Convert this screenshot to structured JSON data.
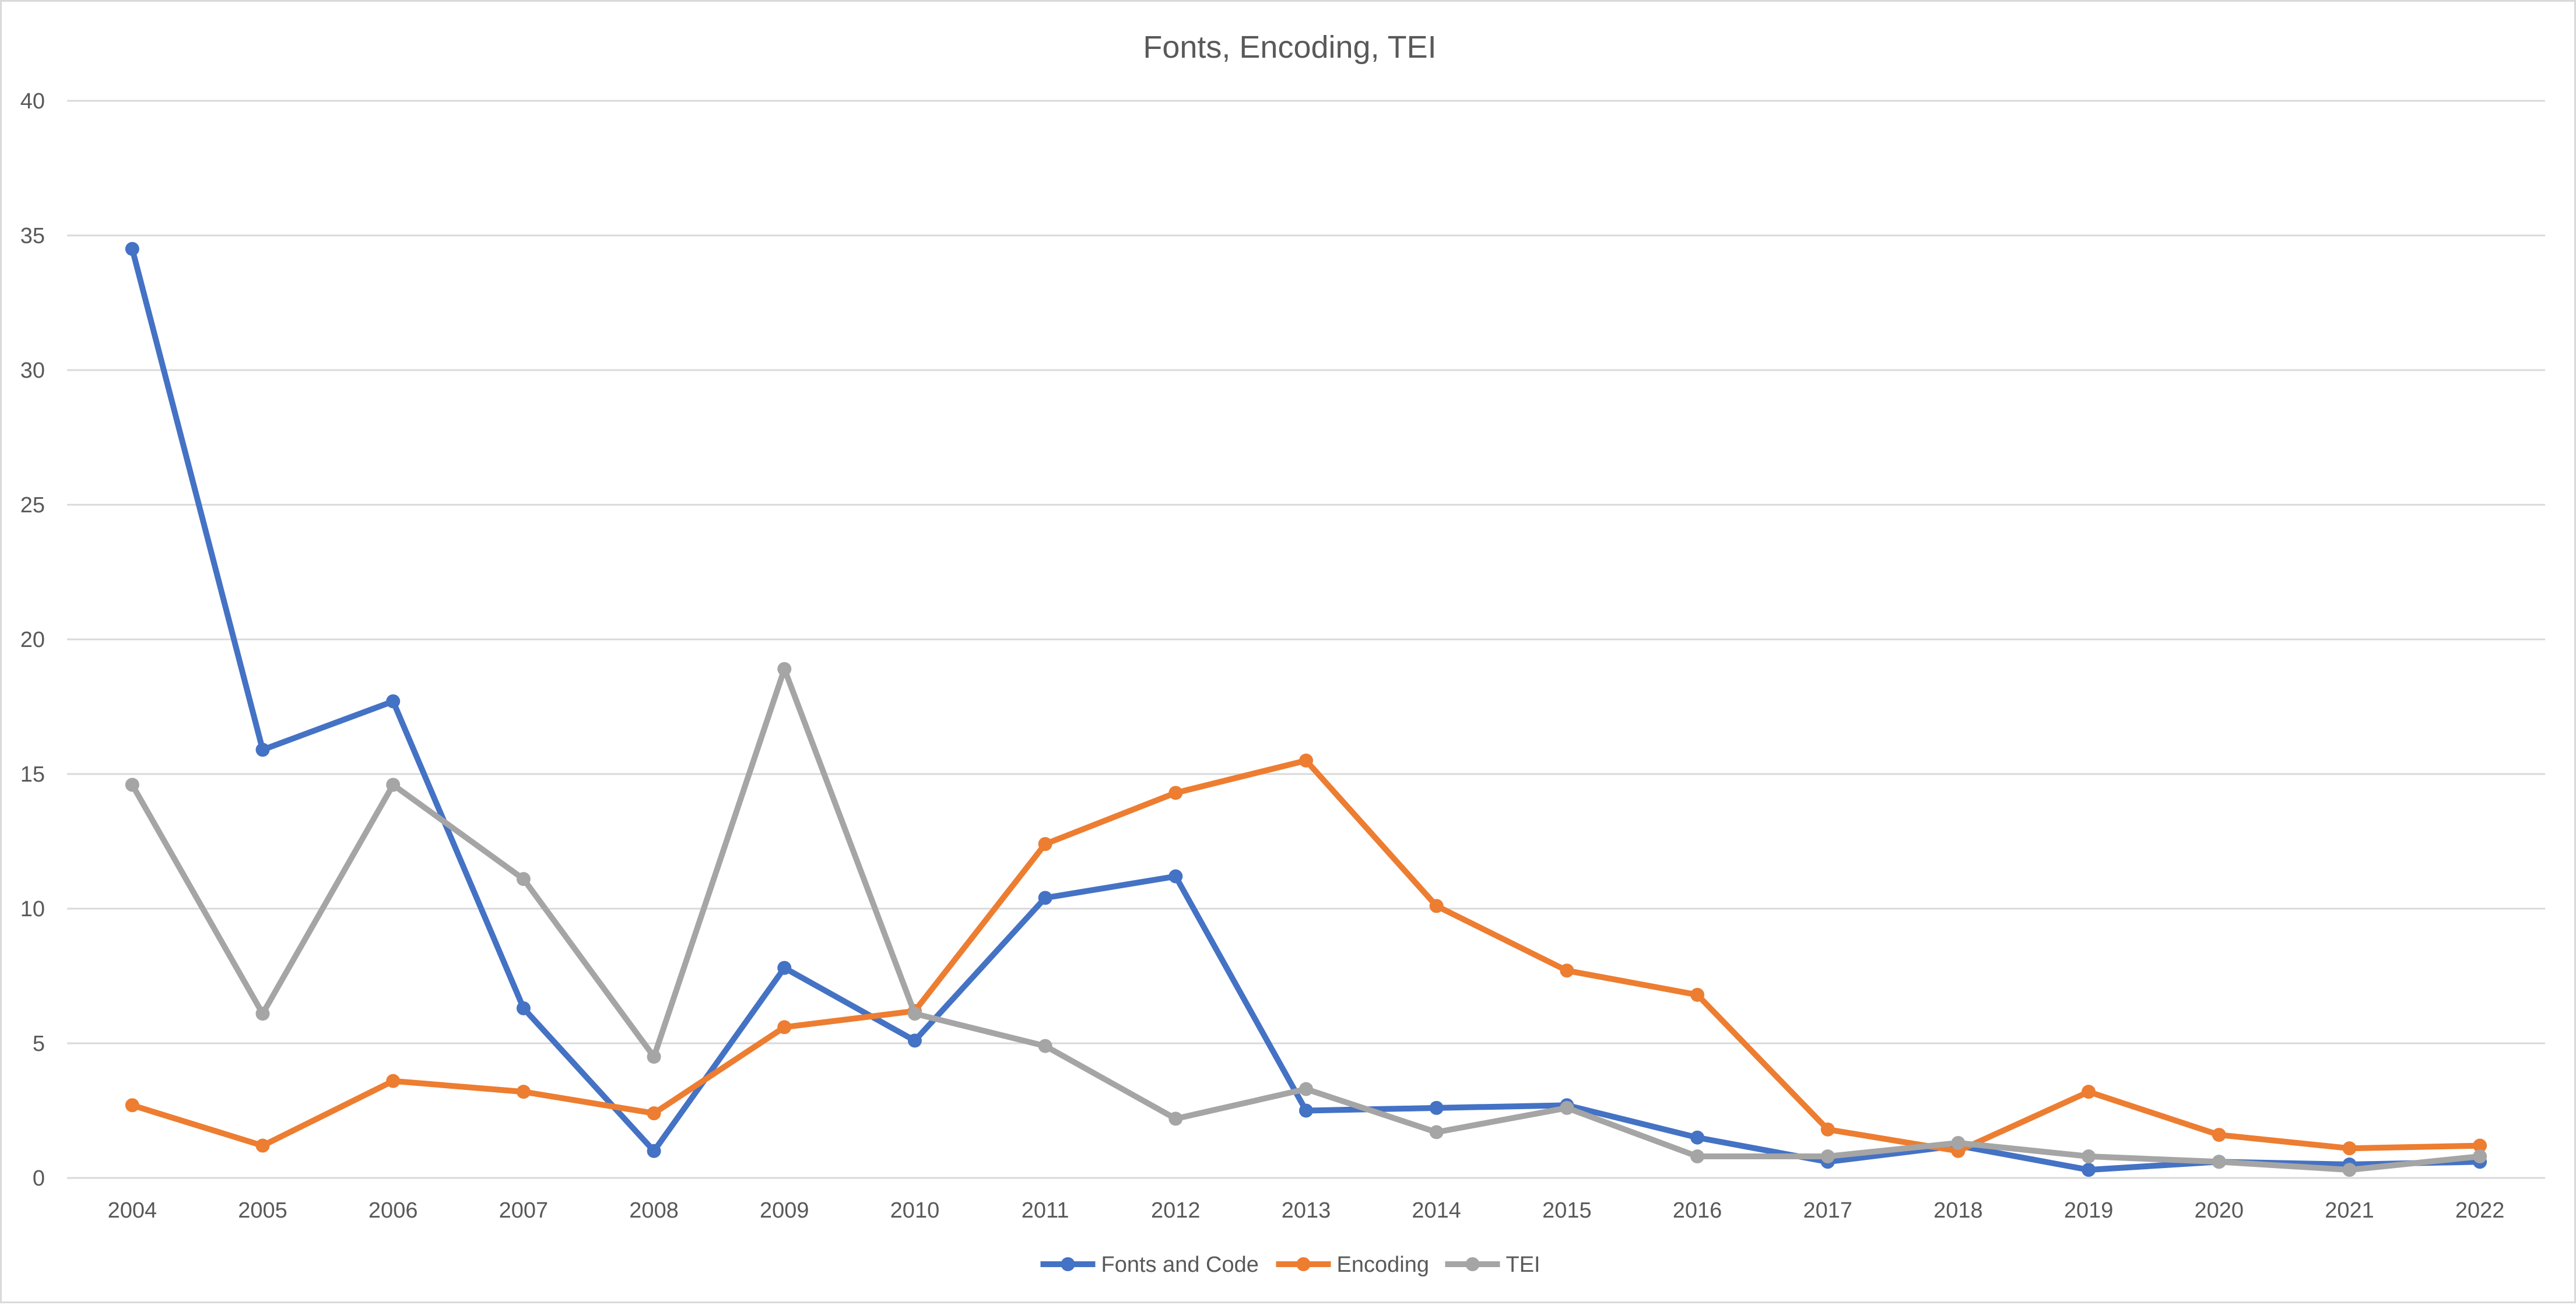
{
  "chart_data": {
    "type": "line",
    "title": "Fonts, Encoding, TEI",
    "xlabel": "",
    "ylabel": "",
    "categories": [
      "2004",
      "2005",
      "2006",
      "2007",
      "2008",
      "2009",
      "2010",
      "2011",
      "2012",
      "2013",
      "2014",
      "2015",
      "2016",
      "2017",
      "2018",
      "2019",
      "2020",
      "2021",
      "2022"
    ],
    "y_ticks": [
      "0",
      "5",
      "10",
      "15",
      "20",
      "25",
      "30",
      "35",
      "40"
    ],
    "ylim": [
      0,
      40
    ],
    "grid": true,
    "legend_position": "bottom",
    "series": [
      {
        "name": "Fonts and Code",
        "color": "#4472c4",
        "values": [
          34.5,
          15.9,
          17.7,
          6.3,
          1.0,
          7.8,
          5.1,
          10.4,
          11.2,
          2.5,
          2.6,
          2.7,
          1.5,
          0.6,
          1.2,
          0.3,
          0.6,
          0.5,
          0.6
        ]
      },
      {
        "name": "Encoding",
        "color": "#ed7d31",
        "values": [
          2.7,
          1.2,
          3.6,
          3.2,
          2.4,
          5.6,
          6.2,
          12.4,
          14.3,
          15.5,
          10.1,
          7.7,
          6.8,
          1.8,
          1.0,
          3.2,
          1.6,
          1.1,
          1.2
        ]
      },
      {
        "name": "TEI",
        "color": "#a5a5a5",
        "values": [
          14.6,
          6.1,
          14.6,
          11.1,
          4.5,
          18.9,
          6.1,
          4.9,
          2.2,
          3.3,
          1.7,
          2.6,
          0.8,
          0.8,
          1.3,
          0.8,
          0.6,
          0.3,
          0.8
        ]
      }
    ]
  }
}
